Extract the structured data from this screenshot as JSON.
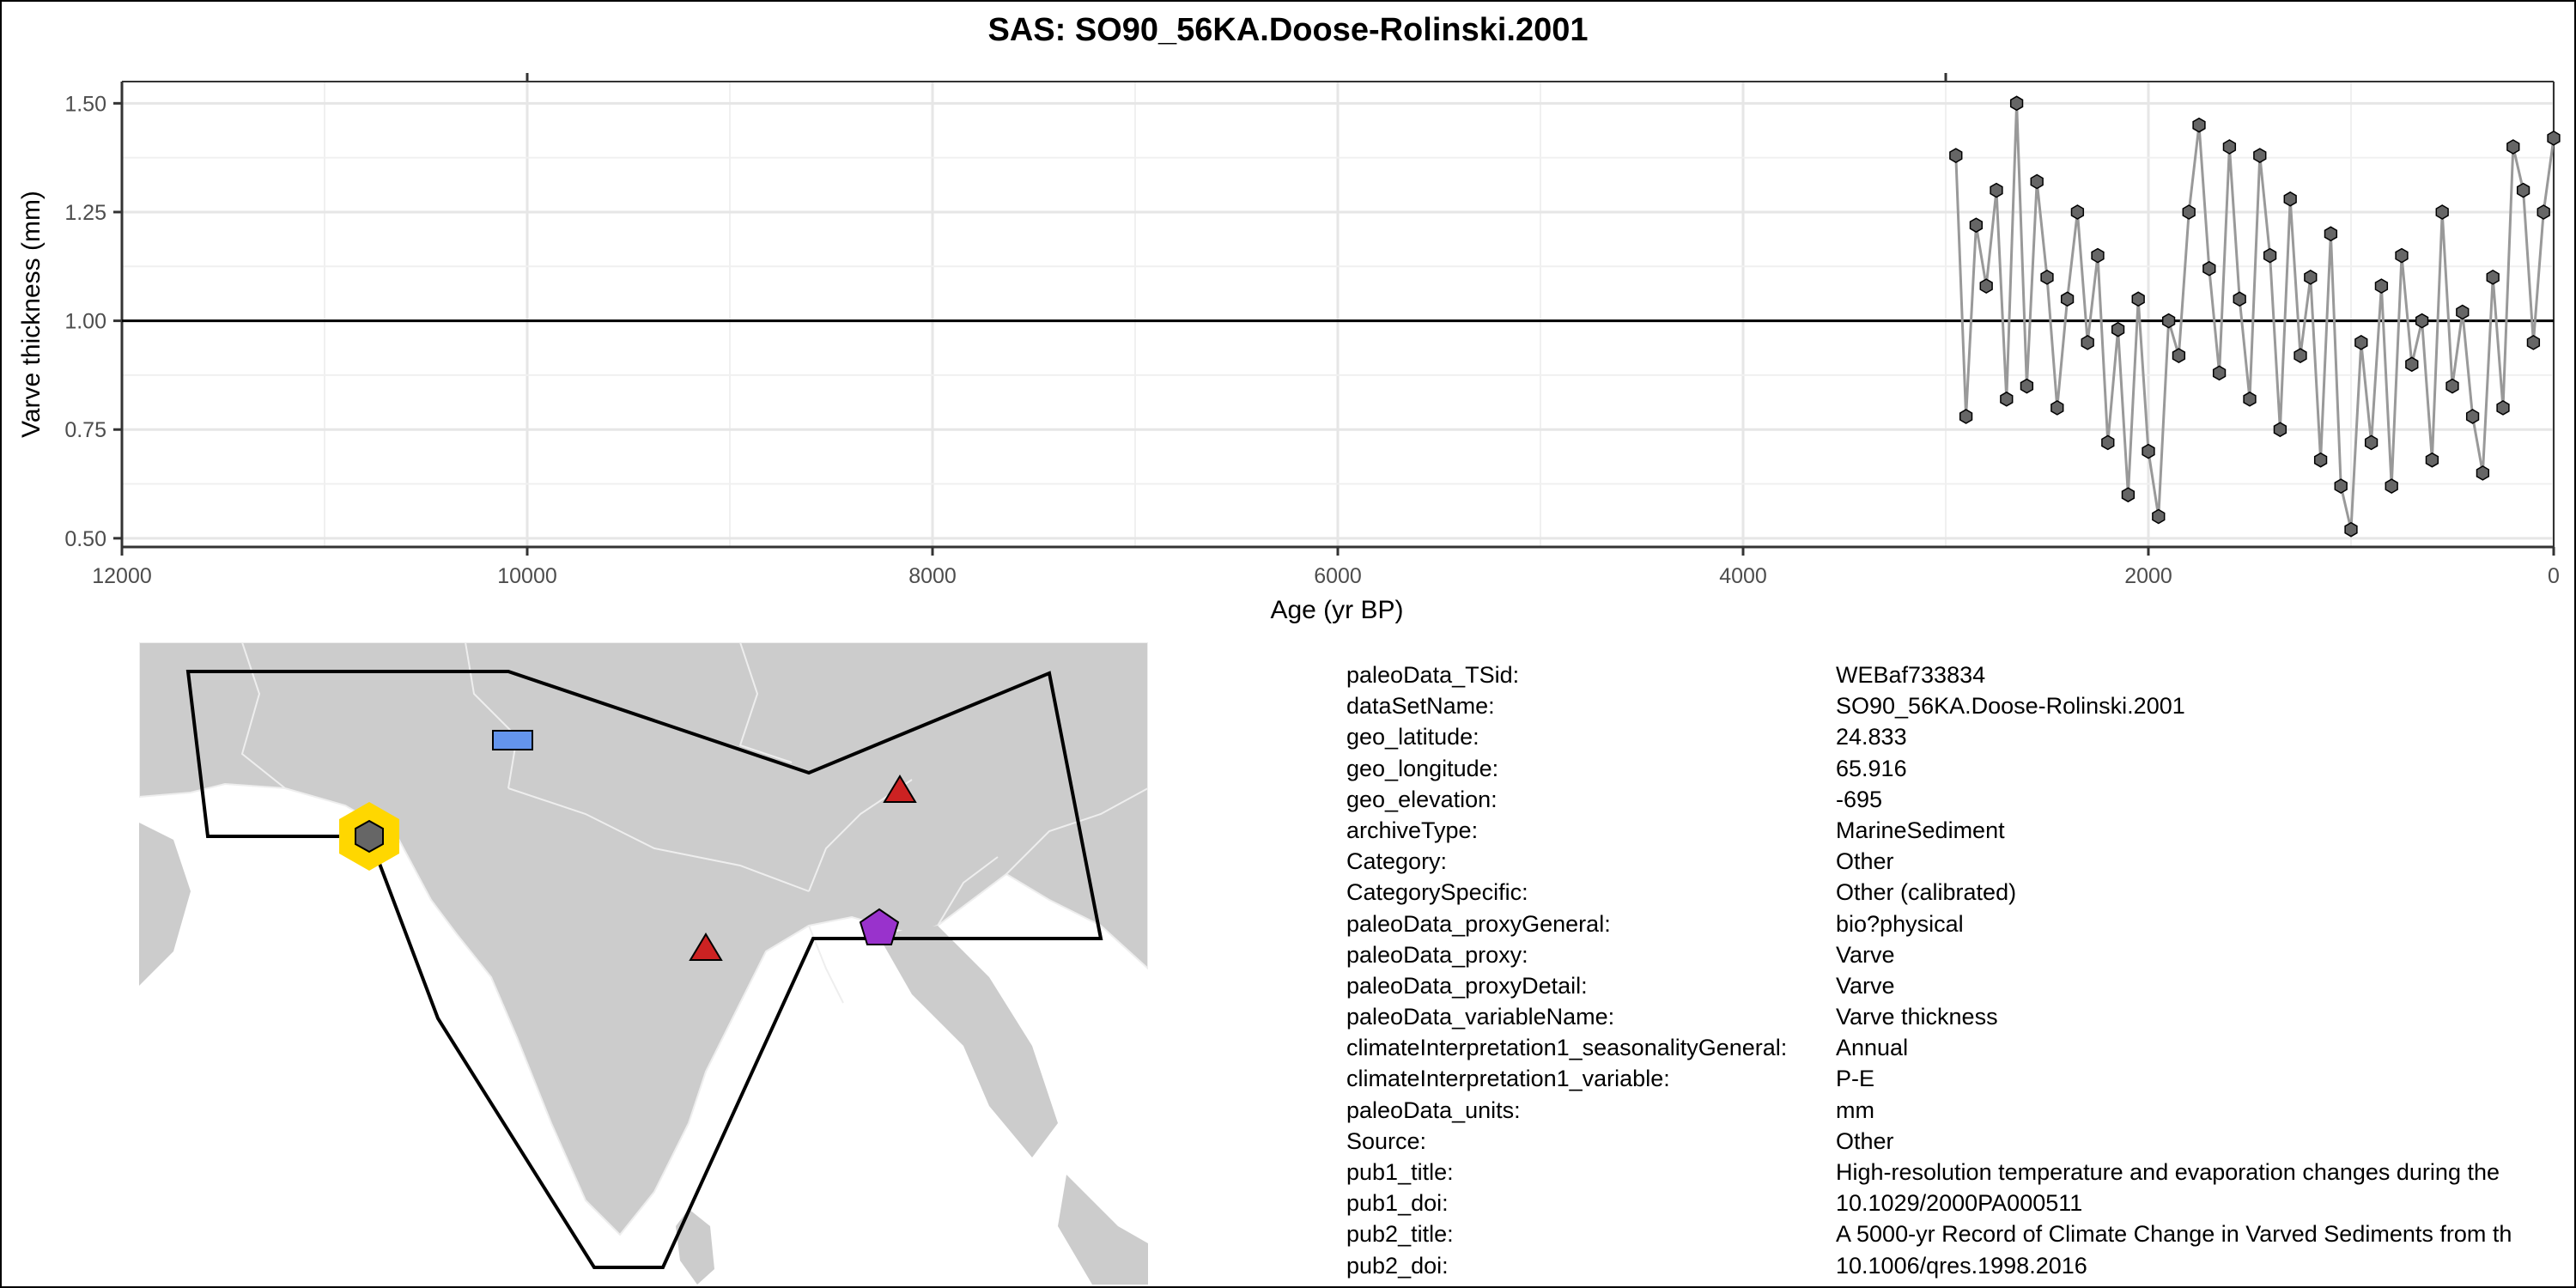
{
  "chart_data": {
    "type": "scatter",
    "title": "SAS: SO90_56KA.Doose-Rolinski.2001",
    "xlabel": "Age (yr BP)",
    "ylabel": "Varve thickness (mm)",
    "xlim": [
      12000,
      0
    ],
    "ylim": [
      0.48,
      1.55
    ],
    "x_ticks": [
      "12000",
      "10000",
      "8000",
      "6000",
      "4000",
      "2000",
      "0"
    ],
    "x_tick_values": [
      12000,
      10000,
      8000,
      6000,
      4000,
      2000,
      0
    ],
    "y_ticks": [
      "1.50",
      "1.25",
      "1.00",
      "0.75",
      "0.50"
    ],
    "y_tick_values": [
      1.5,
      1.25,
      1.0,
      0.75,
      0.5
    ],
    "reference_line": 1.0,
    "grid": true,
    "series": [
      {
        "x": [
          2950,
          2900,
          2850,
          2800,
          2750,
          2700,
          2650,
          2600,
          2550,
          2500,
          2450,
          2400,
          2350,
          2300,
          2250,
          2200,
          2150,
          2100,
          2050,
          2000,
          1950,
          1900,
          1850,
          1800,
          1750,
          1700,
          1650,
          1600,
          1550,
          1500,
          1450,
          1400,
          1350,
          1300,
          1250,
          1200,
          1150,
          1100,
          1050,
          1000,
          950,
          900,
          850,
          800,
          750,
          700,
          650,
          600,
          550,
          500,
          450,
          400,
          350,
          300,
          250,
          200,
          150,
          100,
          50,
          0
        ],
        "y": [
          1.38,
          0.78,
          1.22,
          1.08,
          1.3,
          0.82,
          1.5,
          0.85,
          1.32,
          1.1,
          0.8,
          1.05,
          1.25,
          0.95,
          1.15,
          0.72,
          0.98,
          0.6,
          1.05,
          0.7,
          0.55,
          1.0,
          0.92,
          1.25,
          1.45,
          1.12,
          0.88,
          1.4,
          1.05,
          0.82,
          1.38,
          1.15,
          0.75,
          1.28,
          0.92,
          1.1,
          0.68,
          1.2,
          0.62,
          0.52,
          0.95,
          0.72,
          1.08,
          0.62,
          1.15,
          0.9,
          1.0,
          0.68,
          1.25,
          0.85,
          1.02,
          0.78,
          0.65,
          1.1,
          0.8,
          1.4,
          1.3,
          0.95,
          1.25,
          1.42
        ],
        "point_color": "#666666",
        "line_color": "#999999"
      }
    ]
  },
  "metadata": [
    {
      "key": "paleoData_TSid:",
      "value": "WEBaf733834"
    },
    {
      "key": "dataSetName:",
      "value": "SO90_56KA.Doose-Rolinski.2001"
    },
    {
      "key": "geo_latitude:",
      "value": "24.833"
    },
    {
      "key": "geo_longitude:",
      "value": "65.916"
    },
    {
      "key": "geo_elevation:",
      "value": "-695"
    },
    {
      "key": "archiveType:",
      "value": "MarineSediment"
    },
    {
      "key": "Category:",
      "value": "Other"
    },
    {
      "key": "CategorySpecific:",
      "value": "Other (calibrated)"
    },
    {
      "key": "paleoData_proxyGeneral:",
      "value": "bio?physical"
    },
    {
      "key": "paleoData_proxy:",
      "value": "Varve"
    },
    {
      "key": "paleoData_proxyDetail:",
      "value": "Varve"
    },
    {
      "key": "paleoData_variableName:",
      "value": "Varve thickness"
    },
    {
      "key": "climateInterpretation1_seasonalityGeneral:",
      "value": "Annual"
    },
    {
      "key": "climateInterpretation1_variable:",
      "value": "P-E"
    },
    {
      "key": "paleoData_units:",
      "value": "mm"
    },
    {
      "key": "Source:",
      "value": "Other"
    },
    {
      "key": "pub1_title:",
      "value": "High-resolution temperature and evaporation changes during the"
    },
    {
      "key": "pub1_doi:",
      "value": "10.1029/2000PA000511"
    },
    {
      "key": "pub2_title:",
      "value": "A 5000-yr Record of Climate Change in Varved Sediments from th"
    },
    {
      "key": "pub2_doi:",
      "value": "10.1006/qres.1998.2016"
    }
  ],
  "map": {
    "land_color": "#cccccc",
    "border_color": "#eeeeee",
    "region_outline_color": "#000000",
    "markers": [
      {
        "shape": "hexagon",
        "color": "#666666",
        "highlight": "#ffd700",
        "label": "site"
      },
      {
        "shape": "rectangle",
        "color": "#6495ed"
      },
      {
        "shape": "triangle",
        "color": "#cc2222"
      },
      {
        "shape": "triangle",
        "color": "#cc2222"
      },
      {
        "shape": "pentagon",
        "color": "#9932cc"
      }
    ]
  }
}
